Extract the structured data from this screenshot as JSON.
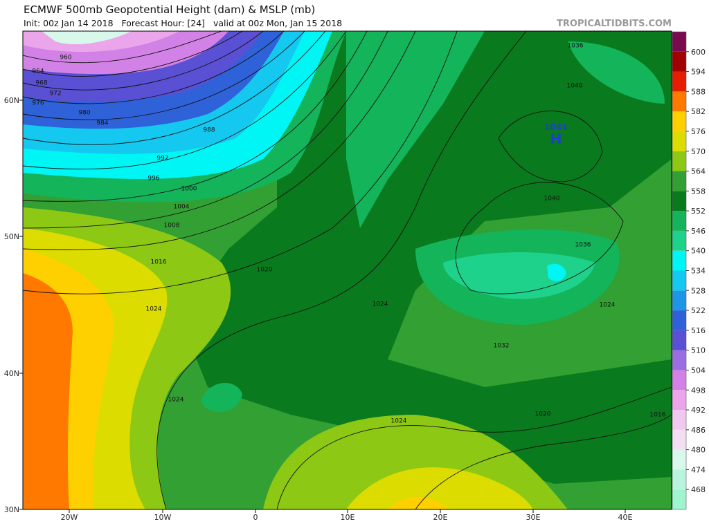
{
  "header": {
    "title": "ECMWF 500mb Geopotential Height (dam) & MSLP (mb)",
    "subtitle": "Init: 00z Jan 14 2018   Forecast Hour: [24]   valid at 00z Mon, Jan 15 2018",
    "watermark": "TROPICALTIDBITS.COM"
  },
  "lat_labels": [
    "60N",
    "50N",
    "40N",
    "30N"
  ],
  "lon_labels": [
    "20W",
    "10W",
    "0",
    "10E",
    "20E",
    "30E",
    "40E"
  ],
  "colorbar": {
    "levels": [
      468,
      474,
      480,
      486,
      492,
      498,
      504,
      510,
      516,
      522,
      528,
      534,
      540,
      546,
      552,
      558,
      564,
      570,
      576,
      582,
      588,
      594,
      600
    ],
    "colors": [
      "#9ff5d0",
      "#b9f5de",
      "#d7f8ea",
      "#f3dff3",
      "#f0c8f0",
      "#eba5eb",
      "#d282e6",
      "#9a6ee0",
      "#5a50d4",
      "#2f62d8",
      "#1e96e6",
      "#14c8f0",
      "#00f5f5",
      "#1ed28c",
      "#14b45a",
      "#0a7a1e",
      "#32a032",
      "#8cc814",
      "#dcdc00",
      "#ffd000",
      "#ff7800",
      "#e61e00",
      "#a00000",
      "#7a0a50"
    ]
  },
  "isobar_labels": [
    "960",
    "964",
    "968",
    "972",
    "976",
    "980",
    "984",
    "988",
    "992",
    "996",
    "1000",
    "1004",
    "1008",
    "1016",
    "1020",
    "1024",
    "1024",
    "1024",
    "1032",
    "1036",
    "1036",
    "1040",
    "1040",
    "1024",
    "1020",
    "1016",
    "1024"
  ],
  "high": {
    "label": "H",
    "value": "1041"
  }
}
